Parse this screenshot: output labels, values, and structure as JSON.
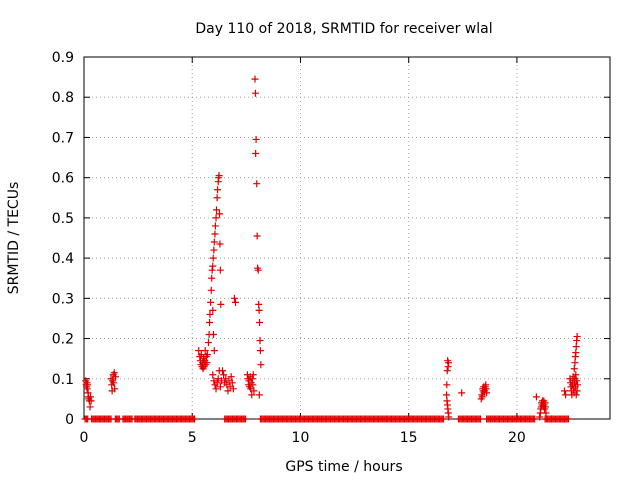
{
  "chart_data": {
    "type": "scatter",
    "title": "Day 110 of 2018, SRMTID for receiver wlal",
    "xlabel": "GPS time / hours",
    "ylabel": "SRMTID / TECUs",
    "xlim": [
      0,
      24.3
    ],
    "ylim": [
      0,
      0.9
    ],
    "x_ticks": [
      0,
      5,
      10,
      15,
      20
    ],
    "y_ticks": [
      0,
      0.1,
      0.2,
      0.3,
      0.4,
      0.5,
      0.6,
      0.7,
      0.8,
      0.9
    ],
    "x_tick_labels": [
      "0",
      "5",
      "10",
      "15",
      "20"
    ],
    "y_tick_labels": [
      "0",
      "0.1",
      "0.2",
      "0.3",
      "0.4",
      "0.5",
      "0.6",
      "0.7",
      "0.8",
      "0.9"
    ],
    "grid": true,
    "marker": "+",
    "color": "#e00000",
    "grid_color": "#a0a0a0",
    "series": [
      {
        "name": "SRMTID",
        "baseline_segments": [
          [
            0.05,
            0.2
          ],
          [
            0.35,
            1.25
          ],
          [
            1.45,
            1.65
          ],
          [
            1.8,
            2.25
          ],
          [
            2.35,
            5.15
          ],
          [
            6.5,
            7.5
          ],
          [
            8.15,
            16.65
          ],
          [
            17.3,
            18.35
          ],
          [
            18.6,
            20.85
          ],
          [
            21.3,
            22.4
          ]
        ],
        "baseline_step": 0.06,
        "points": [
          [
            0.08,
            0.095
          ],
          [
            0.1,
            0.085
          ],
          [
            0.12,
            0.08
          ],
          [
            0.14,
            0.09
          ],
          [
            0.15,
            0.075
          ],
          [
            0.17,
            0.085
          ],
          [
            0.19,
            0.065
          ],
          [
            0.2,
            0.055
          ],
          [
            0.22,
            0.05
          ],
          [
            0.25,
            0.045
          ],
          [
            0.28,
            0.03
          ],
          [
            0.3,
            0.055
          ],
          [
            0.33,
            0.045
          ],
          [
            1.25,
            0.1
          ],
          [
            1.28,
            0.085
          ],
          [
            1.3,
            0.07
          ],
          [
            1.32,
            0.095
          ],
          [
            1.35,
            0.11
          ],
          [
            1.37,
            0.09
          ],
          [
            1.4,
            0.115
          ],
          [
            1.42,
            0.075
          ],
          [
            1.45,
            0.105
          ],
          [
            5.3,
            0.17
          ],
          [
            5.35,
            0.155
          ],
          [
            5.38,
            0.145
          ],
          [
            5.4,
            0.135
          ],
          [
            5.42,
            0.16
          ],
          [
            5.45,
            0.13
          ],
          [
            5.48,
            0.14
          ],
          [
            5.5,
            0.125
          ],
          [
            5.52,
            0.15
          ],
          [
            5.55,
            0.13
          ],
          [
            5.58,
            0.145
          ],
          [
            5.6,
            0.17
          ],
          [
            5.62,
            0.135
          ],
          [
            5.65,
            0.155
          ],
          [
            5.68,
            0.14
          ],
          [
            5.7,
            0.16
          ],
          [
            5.75,
            0.19
          ],
          [
            5.78,
            0.21
          ],
          [
            5.8,
            0.24
          ],
          [
            5.82,
            0.26
          ],
          [
            5.85,
            0.29
          ],
          [
            5.88,
            0.32
          ],
          [
            5.9,
            0.35
          ],
          [
            5.92,
            0.37
          ],
          [
            5.95,
            0.38
          ],
          [
            5.97,
            0.4
          ],
          [
            6.0,
            0.42
          ],
          [
            6.02,
            0.44
          ],
          [
            6.05,
            0.46
          ],
          [
            6.07,
            0.48
          ],
          [
            6.1,
            0.5
          ],
          [
            6.12,
            0.52
          ],
          [
            6.15,
            0.55
          ],
          [
            6.17,
            0.57
          ],
          [
            6.2,
            0.59
          ],
          [
            6.22,
            0.6
          ],
          [
            6.24,
            0.605
          ],
          [
            6.26,
            0.51
          ],
          [
            6.28,
            0.435
          ],
          [
            6.3,
            0.37
          ],
          [
            6.32,
            0.285
          ],
          [
            5.95,
            0.27
          ],
          [
            5.98,
            0.21
          ],
          [
            6.02,
            0.17
          ],
          [
            5.95,
            0.11
          ],
          [
            6.0,
            0.095
          ],
          [
            6.05,
            0.085
          ],
          [
            6.1,
            0.075
          ],
          [
            6.15,
            0.09
          ],
          [
            6.2,
            0.1
          ],
          [
            6.25,
            0.12
          ],
          [
            6.3,
            0.08
          ],
          [
            6.35,
            0.095
          ],
          [
            6.4,
            0.12
          ],
          [
            6.45,
            0.11
          ],
          [
            6.5,
            0.09
          ],
          [
            6.55,
            0.1
          ],
          [
            6.6,
            0.085
          ],
          [
            6.65,
            0.07
          ],
          [
            6.7,
            0.095
          ],
          [
            6.75,
            0.08
          ],
          [
            6.8,
            0.105
          ],
          [
            6.85,
            0.09
          ],
          [
            6.9,
            0.075
          ],
          [
            6.95,
            0.3
          ],
          [
            7.0,
            0.29
          ],
          [
            7.55,
            0.11
          ],
          [
            7.58,
            0.1
          ],
          [
            7.6,
            0.085
          ],
          [
            7.62,
            0.095
          ],
          [
            7.65,
            0.08
          ],
          [
            7.68,
            0.105
          ],
          [
            7.7,
            0.075
          ],
          [
            7.72,
            0.09
          ],
          [
            7.75,
            0.06
          ],
          [
            7.78,
            0.1
          ],
          [
            7.8,
            0.085
          ],
          [
            7.82,
            0.11
          ],
          [
            7.85,
            0.07
          ],
          [
            7.9,
            0.845
          ],
          [
            7.92,
            0.81
          ],
          [
            7.95,
            0.695
          ],
          [
            7.93,
            0.66
          ],
          [
            7.98,
            0.585
          ],
          [
            8.0,
            0.455
          ],
          [
            8.02,
            0.375
          ],
          [
            8.05,
            0.37
          ],
          [
            8.07,
            0.285
          ],
          [
            8.09,
            0.27
          ],
          [
            8.11,
            0.24
          ],
          [
            8.13,
            0.195
          ],
          [
            8.15,
            0.17
          ],
          [
            8.17,
            0.135
          ],
          [
            8.1,
            0.06
          ],
          [
            16.8,
            0.145
          ],
          [
            16.82,
            0.13
          ],
          [
            16.78,
            0.12
          ],
          [
            16.84,
            0.14
          ],
          [
            16.76,
            0.085
          ],
          [
            16.75,
            0.06
          ],
          [
            16.77,
            0.045
          ],
          [
            16.79,
            0.035
          ],
          [
            16.81,
            0.025
          ],
          [
            16.83,
            0.015
          ],
          [
            16.85,
            0.005
          ],
          [
            17.45,
            0.065
          ],
          [
            18.35,
            0.05
          ],
          [
            18.38,
            0.06
          ],
          [
            18.4,
            0.055
          ],
          [
            18.42,
            0.075
          ],
          [
            18.44,
            0.07
          ],
          [
            18.46,
            0.08
          ],
          [
            18.48,
            0.065
          ],
          [
            18.5,
            0.07
          ],
          [
            18.52,
            0.075
          ],
          [
            18.54,
            0.08
          ],
          [
            18.56,
            0.085
          ],
          [
            18.58,
            0.075
          ],
          [
            18.6,
            0.065
          ],
          [
            20.9,
            0.055
          ],
          [
            21.05,
            0.005
          ],
          [
            21.08,
            0.015
          ],
          [
            21.1,
            0.025
          ],
          [
            21.12,
            0.03
          ],
          [
            21.14,
            0.04
          ],
          [
            21.16,
            0.035
          ],
          [
            21.18,
            0.045
          ],
          [
            21.2,
            0.04
          ],
          [
            21.22,
            0.03
          ],
          [
            21.24,
            0.045
          ],
          [
            21.26,
            0.035
          ],
          [
            21.28,
            0.025
          ],
          [
            21.3,
            0.04
          ],
          [
            21.32,
            0.03
          ],
          [
            21.34,
            0.015
          ],
          [
            22.2,
            0.07
          ],
          [
            22.25,
            0.06
          ],
          [
            22.45,
            0.1
          ],
          [
            22.48,
            0.09
          ],
          [
            22.5,
            0.08
          ],
          [
            22.52,
            0.07
          ],
          [
            22.54,
            0.06
          ],
          [
            22.56,
            0.085
          ],
          [
            22.58,
            0.095
          ],
          [
            22.6,
            0.105
          ],
          [
            22.62,
            0.075
          ],
          [
            22.64,
            0.065
          ],
          [
            22.66,
            0.09
          ],
          [
            22.68,
            0.1
          ],
          [
            22.7,
            0.08
          ],
          [
            22.72,
            0.11
          ],
          [
            22.74,
            0.06
          ],
          [
            22.76,
            0.095
          ],
          [
            22.78,
            0.07
          ],
          [
            22.8,
            0.085
          ],
          [
            22.65,
            0.125
          ],
          [
            22.68,
            0.14
          ],
          [
            22.7,
            0.155
          ],
          [
            22.72,
            0.165
          ],
          [
            22.74,
            0.18
          ],
          [
            22.76,
            0.195
          ],
          [
            22.78,
            0.205
          ]
        ]
      }
    ]
  }
}
